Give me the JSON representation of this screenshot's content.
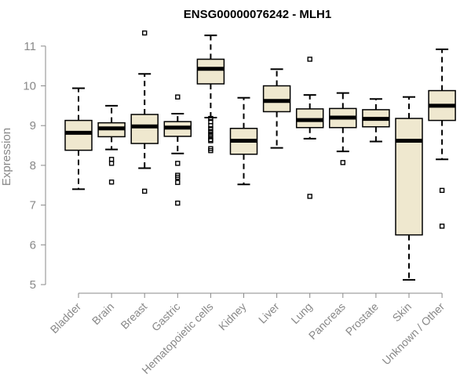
{
  "colors": {
    "box_fill": "#efe8cf",
    "stroke": "#000000",
    "axis": "#888888"
  },
  "chart_data": {
    "type": "boxplot",
    "title": "ENSG00000076242 - MLH1",
    "xlabel": "",
    "ylabel": "Expression",
    "ylim": [
      5,
      11.3
    ],
    "yticks": [
      5,
      6,
      7,
      8,
      9,
      10,
      11
    ],
    "categories": [
      "Bladder",
      "Brain",
      "Breast",
      "Gastric",
      "Hematopoietic cells",
      "Kidney",
      "Liver",
      "Lung",
      "Pancreas",
      "Prostate",
      "Skin",
      "Unknown / Other"
    ],
    "boxes": [
      {
        "category": "Bladder",
        "whisker_low": 7.4,
        "q1": 8.38,
        "median": 8.82,
        "q3": 9.13,
        "whisker_high": 9.94,
        "outliers": []
      },
      {
        "category": "Brain",
        "whisker_low": 8.4,
        "q1": 8.72,
        "median": 8.93,
        "q3": 9.07,
        "whisker_high": 9.5,
        "outliers": [
          8.15,
          8.05,
          7.58
        ]
      },
      {
        "category": "Breast",
        "whisker_low": 7.93,
        "q1": 8.55,
        "median": 8.98,
        "q3": 9.28,
        "whisker_high": 10.3,
        "outliers": [
          11.33,
          7.35
        ]
      },
      {
        "category": "Gastric",
        "whisker_low": 8.3,
        "q1": 8.73,
        "median": 8.95,
        "q3": 9.1,
        "whisker_high": 9.3,
        "outliers": [
          9.72,
          8.05,
          7.75,
          7.7,
          7.57,
          7.05
        ]
      },
      {
        "category": "Hematopoietic cells",
        "whisker_low": 9.2,
        "q1": 10.05,
        "median": 10.43,
        "q3": 10.67,
        "whisker_high": 11.27,
        "outliers": [
          9.18,
          9.1,
          9.0,
          8.92,
          8.85,
          8.78,
          8.72,
          8.65,
          8.62,
          8.42,
          8.37
        ]
      },
      {
        "category": "Kidney",
        "whisker_low": 7.52,
        "q1": 8.28,
        "median": 8.62,
        "q3": 8.93,
        "whisker_high": 9.7,
        "outliers": []
      },
      {
        "category": "Liver",
        "whisker_low": 8.44,
        "q1": 9.35,
        "median": 9.62,
        "q3": 10.0,
        "whisker_high": 10.42,
        "outliers": []
      },
      {
        "category": "Lung",
        "whisker_low": 8.67,
        "q1": 8.95,
        "median": 9.14,
        "q3": 9.42,
        "whisker_high": 9.77,
        "outliers": [
          10.67,
          7.22
        ]
      },
      {
        "category": "Pancreas",
        "whisker_low": 8.35,
        "q1": 8.95,
        "median": 9.2,
        "q3": 9.43,
        "whisker_high": 9.82,
        "outliers": [
          8.07
        ]
      },
      {
        "category": "Prostate",
        "whisker_low": 8.6,
        "q1": 8.97,
        "median": 9.17,
        "q3": 9.4,
        "whisker_high": 9.67,
        "outliers": []
      },
      {
        "category": "Skin",
        "whisker_low": 5.12,
        "q1": 6.25,
        "median": 8.62,
        "q3": 9.18,
        "whisker_high": 9.72,
        "outliers": []
      },
      {
        "category": "Unknown / Other",
        "whisker_low": 8.15,
        "q1": 9.13,
        "median": 9.5,
        "q3": 9.88,
        "whisker_high": 10.92,
        "outliers": [
          7.37,
          6.47
        ]
      }
    ]
  }
}
